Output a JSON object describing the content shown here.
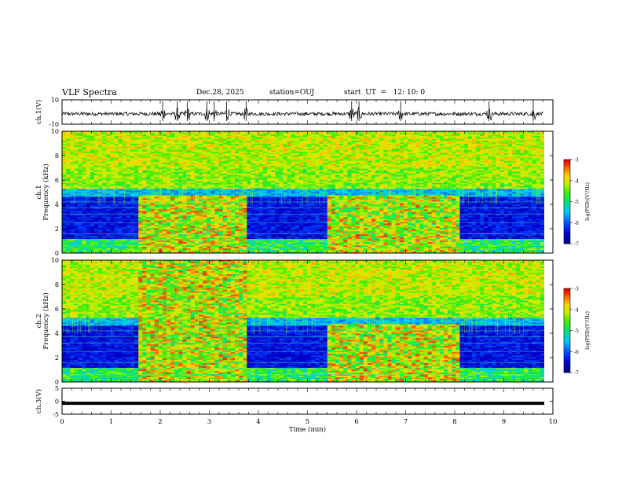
{
  "header": {
    "title": "VLF Spectra",
    "date": "Dec.28, 2025",
    "station": "station=OUJ",
    "start": "start  UT  =   12: 10: 0"
  },
  "chart_data": [
    {
      "type": "line",
      "name": "waveform-ch1",
      "ylabel": "ch.1(V)",
      "ylim": [
        -10,
        10
      ],
      "yticks": [
        10,
        -10
      ],
      "xlim": [
        0,
        10
      ],
      "baseline": -1.5,
      "noise_amplitude": 1.5,
      "bursts_min": [
        2.05,
        2.35,
        2.55,
        2.95,
        3.1,
        3.35,
        3.75,
        5.9,
        6.05,
        6.9,
        8.7,
        9.6
      ]
    },
    {
      "type": "heatmap",
      "name": "spectrogram-ch1",
      "ylabel": "ch.1\nFrequency (kHz)",
      "ylim": [
        0,
        10
      ],
      "yticks": [
        "0",
        "2",
        "4",
        "6",
        "8",
        "10"
      ],
      "xlim": [
        0,
        9.8
      ],
      "colorbar": {
        "label": "log(PSD)(V²/Hz)",
        "range": [
          -7,
          -3
        ],
        "ticks": [
          "-3",
          "-4",
          "-5",
          "-6",
          "-7"
        ]
      },
      "active_intervals_min": [
        [
          1.55,
          3.72
        ],
        [
          5.4,
          8.1
        ]
      ]
    },
    {
      "type": "heatmap",
      "name": "spectrogram-ch2",
      "ylabel": "ch.2\nFrequency (kHz)",
      "ylim": [
        0,
        10
      ],
      "yticks": [
        "0",
        "2",
        "4",
        "6",
        "8",
        "10"
      ],
      "xlim": [
        0,
        9.8
      ],
      "colorbar": {
        "label": "log(PSD)(V²/Hz)",
        "range": [
          -7,
          -3
        ],
        "ticks": [
          "-3",
          "-4",
          "-5",
          "-6",
          "-7"
        ]
      },
      "active_intervals_min": [
        [
          1.55,
          3.72
        ],
        [
          5.4,
          8.1
        ]
      ]
    },
    {
      "type": "line",
      "name": "waveform-ch3",
      "ylabel": "ch.3(V)",
      "ylim": [
        -5,
        5
      ],
      "yticks": [
        "5",
        "0",
        "-5"
      ],
      "xlim": [
        0,
        10
      ],
      "baseline": -0.8
    }
  ],
  "xaxis": {
    "label": "Time (min)",
    "ticks": [
      "0",
      "1",
      "2",
      "3",
      "4",
      "5",
      "6",
      "7",
      "8",
      "9",
      "10"
    ]
  }
}
